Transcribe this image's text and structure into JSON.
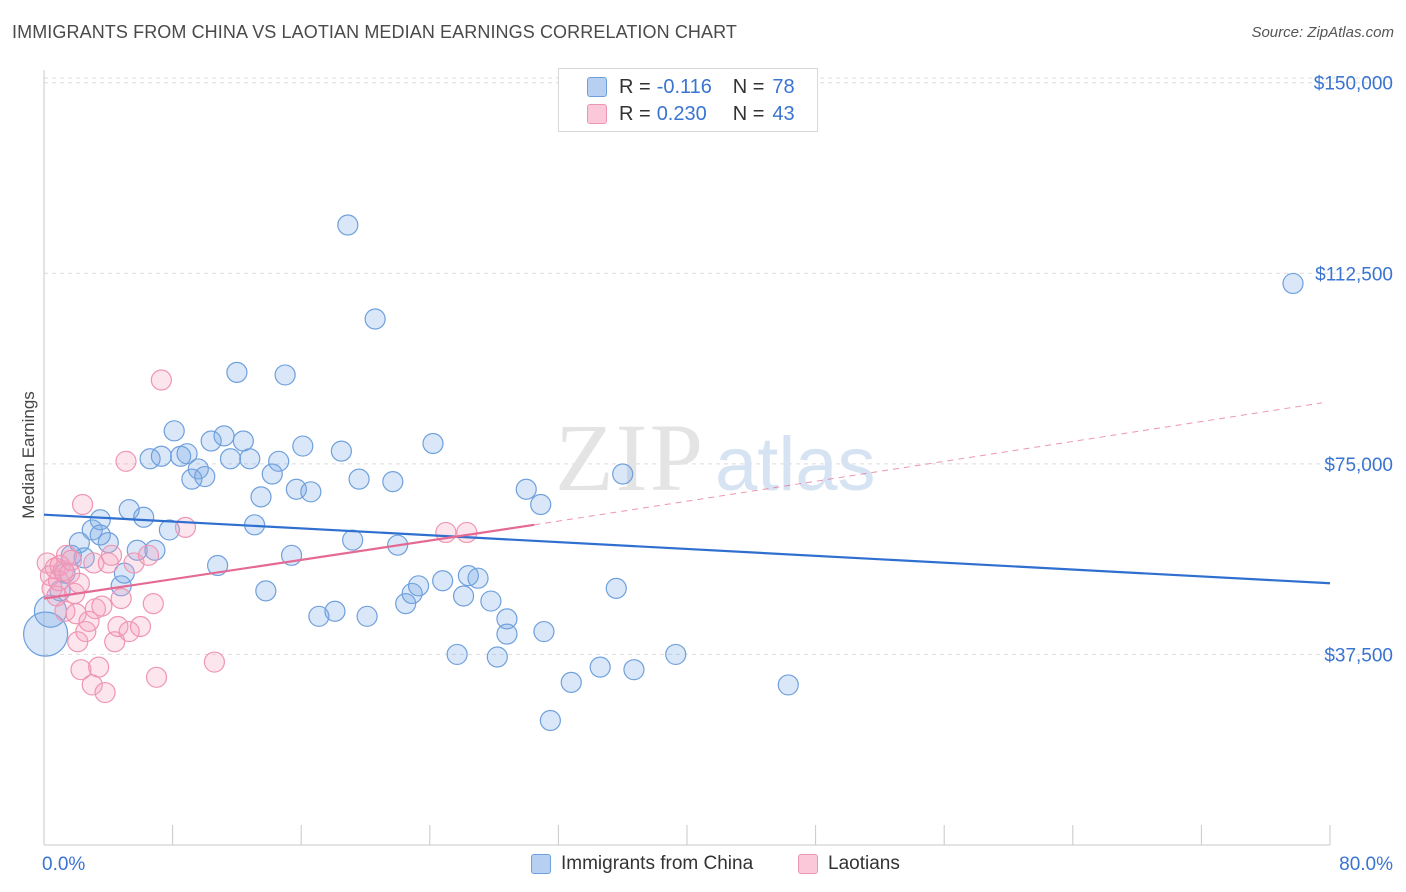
{
  "title": "IMMIGRANTS FROM CHINA VS LAOTIAN MEDIAN EARNINGS CORRELATION CHART",
  "source": "Source: ZipAtlas.com",
  "watermark": {
    "zip": "ZIP",
    "atlas": "atlas"
  },
  "legend": {
    "series1": {
      "r_label": "R =",
      "r_value": "-0.116",
      "n_label": "N =",
      "n_value": "78"
    },
    "series2": {
      "r_label": "R =",
      "r_value": "0.230",
      "n_label": "N =",
      "n_value": "43"
    }
  },
  "colors": {
    "blue_fill": "rgba(120,170,230,0.28)",
    "blue_stroke": "#6fa0dc",
    "blue_line": "#2f6fcf",
    "pink_fill": "rgba(245,160,190,0.28)",
    "pink_stroke": "#ef95b4",
    "pink_line": "#e46a93",
    "axis_text": "#3a74d1",
    "grid": "#dcdcdc"
  },
  "chart_data": {
    "type": "scatter",
    "title": "IMMIGRANTS FROM CHINA VS LAOTIAN MEDIAN EARNINGS CORRELATION CHART",
    "xlabel": "",
    "ylabel": "Median Earnings",
    "xlim": [
      0,
      80
    ],
    "ylim": [
      0,
      152500
    ],
    "x_tick_labels": [
      "0.0%",
      "80.0%"
    ],
    "y_ticks": [
      37500,
      75000,
      112500,
      150000
    ],
    "y_tick_labels": [
      "$37,500",
      "$75,000",
      "$112,500",
      "$150,000"
    ],
    "grid": true,
    "legend_position": "bottom",
    "series": [
      {
        "name": "Immigrants from China",
        "color": "#6fa0dc",
        "trend": {
          "x": [
            0,
            80
          ],
          "y": [
            65000,
            51500
          ],
          "dashed_to": 80
        },
        "points": [
          [
            0.1,
            41500,
            22
          ],
          [
            0.4,
            46000,
            16
          ],
          [
            1.0,
            50000,
            10
          ],
          [
            1.3,
            53500,
            10
          ],
          [
            1.7,
            57000,
            10
          ],
          [
            2.2,
            59500,
            10
          ],
          [
            2.5,
            56500,
            10
          ],
          [
            3.0,
            62000,
            10
          ],
          [
            3.5,
            64000,
            10
          ],
          [
            4.0,
            59500,
            10
          ],
          [
            4.8,
            51000,
            10
          ],
          [
            5.0,
            53500,
            10
          ],
          [
            5.3,
            66000,
            10
          ],
          [
            5.8,
            58000,
            10
          ],
          [
            6.2,
            64500,
            10
          ],
          [
            6.6,
            76000,
            10
          ],
          [
            6.9,
            58000,
            10
          ],
          [
            7.3,
            76500,
            10
          ],
          [
            7.8,
            62000,
            10
          ],
          [
            8.1,
            81500,
            10
          ],
          [
            8.5,
            76500,
            10
          ],
          [
            8.9,
            77000,
            10
          ],
          [
            9.2,
            72000,
            10
          ],
          [
            9.6,
            74000,
            10
          ],
          [
            10.0,
            72500,
            10
          ],
          [
            10.4,
            79500,
            10
          ],
          [
            10.8,
            55000,
            10
          ],
          [
            11.2,
            80500,
            10
          ],
          [
            11.6,
            76000,
            10
          ],
          [
            12.0,
            93000,
            10
          ],
          [
            12.4,
            79500,
            10
          ],
          [
            12.8,
            76000,
            10
          ],
          [
            13.1,
            63000,
            10
          ],
          [
            13.5,
            68500,
            10
          ],
          [
            13.8,
            50000,
            10
          ],
          [
            14.2,
            73000,
            10
          ],
          [
            14.6,
            75500,
            10
          ],
          [
            15.0,
            92500,
            10
          ],
          [
            15.4,
            57000,
            10
          ],
          [
            15.7,
            70000,
            10
          ],
          [
            16.1,
            78500,
            10
          ],
          [
            16.6,
            69500,
            10
          ],
          [
            17.1,
            45000,
            10
          ],
          [
            18.1,
            46000,
            10
          ],
          [
            18.5,
            77500,
            10
          ],
          [
            18.9,
            122000,
            10
          ],
          [
            19.2,
            60000,
            10
          ],
          [
            19.6,
            72000,
            10
          ],
          [
            20.1,
            45000,
            10
          ],
          [
            20.6,
            103500,
            10
          ],
          [
            21.7,
            71500,
            10
          ],
          [
            22.0,
            59000,
            10
          ],
          [
            22.5,
            47500,
            10
          ],
          [
            22.9,
            49500,
            10
          ],
          [
            23.3,
            51000,
            10
          ],
          [
            24.2,
            79000,
            10
          ],
          [
            24.8,
            52000,
            10
          ],
          [
            25.7,
            37500,
            10
          ],
          [
            26.1,
            49000,
            10
          ],
          [
            26.4,
            53000,
            10
          ],
          [
            27.0,
            52500,
            10
          ],
          [
            27.8,
            48000,
            10
          ],
          [
            28.2,
            37000,
            10
          ],
          [
            28.8,
            44500,
            10
          ],
          [
            28.8,
            41500,
            10
          ],
          [
            30.0,
            70000,
            10
          ],
          [
            30.9,
            67000,
            10
          ],
          [
            31.1,
            42000,
            10
          ],
          [
            31.5,
            24500,
            10
          ],
          [
            32.8,
            32000,
            10
          ],
          [
            34.6,
            35000,
            10
          ],
          [
            35.6,
            50500,
            10
          ],
          [
            36.0,
            73000,
            10
          ],
          [
            36.7,
            34500,
            10
          ],
          [
            39.3,
            37500,
            10
          ],
          [
            46.3,
            31500,
            10
          ],
          [
            77.7,
            110500,
            10
          ],
          [
            3.5,
            61000,
            10
          ]
        ]
      },
      {
        "name": "Laotians",
        "color": "#ef95b4",
        "trend": {
          "x": [
            0,
            30.5
          ],
          "y": [
            48500,
            63000
          ],
          "dashed_to": 79.5,
          "dashed_y": 87000
        },
        "points": [
          [
            0.2,
            55500,
            10
          ],
          [
            0.4,
            53000,
            10
          ],
          [
            0.5,
            50500,
            10
          ],
          [
            0.7,
            54500,
            10
          ],
          [
            0.8,
            49000,
            10
          ],
          [
            0.9,
            52000,
            10
          ],
          [
            1.0,
            55000,
            10
          ],
          [
            1.2,
            54000,
            10
          ],
          [
            1.3,
            46000,
            10
          ],
          [
            1.4,
            57000,
            10
          ],
          [
            1.6,
            53500,
            10
          ],
          [
            1.7,
            56000,
            10
          ],
          [
            1.9,
            49500,
            10
          ],
          [
            2.0,
            45500,
            10
          ],
          [
            2.1,
            40000,
            10
          ],
          [
            2.2,
            51500,
            10
          ],
          [
            2.3,
            34500,
            10
          ],
          [
            2.4,
            67000,
            10
          ],
          [
            2.6,
            42000,
            10
          ],
          [
            2.8,
            44000,
            10
          ],
          [
            3.0,
            31500,
            10
          ],
          [
            3.1,
            55500,
            10
          ],
          [
            3.2,
            46500,
            10
          ],
          [
            3.4,
            35000,
            10
          ],
          [
            3.6,
            47000,
            10
          ],
          [
            3.8,
            30000,
            10
          ],
          [
            4.0,
            55500,
            10
          ],
          [
            4.2,
            57000,
            10
          ],
          [
            4.4,
            40000,
            10
          ],
          [
            4.6,
            43000,
            10
          ],
          [
            4.8,
            48500,
            10
          ],
          [
            5.1,
            75500,
            10
          ],
          [
            5.3,
            42000,
            10
          ],
          [
            5.6,
            55500,
            10
          ],
          [
            6.0,
            43000,
            10
          ],
          [
            6.5,
            57000,
            10
          ],
          [
            6.8,
            47500,
            10
          ],
          [
            7.0,
            33000,
            10
          ],
          [
            7.3,
            91500,
            10
          ],
          [
            8.8,
            62500,
            10
          ],
          [
            10.6,
            36000,
            10
          ],
          [
            25.0,
            61500,
            10
          ],
          [
            26.3,
            61500,
            10
          ]
        ]
      }
    ]
  },
  "bottom_legend": {
    "series1": "Immigrants from China",
    "series2": "Laotians"
  }
}
